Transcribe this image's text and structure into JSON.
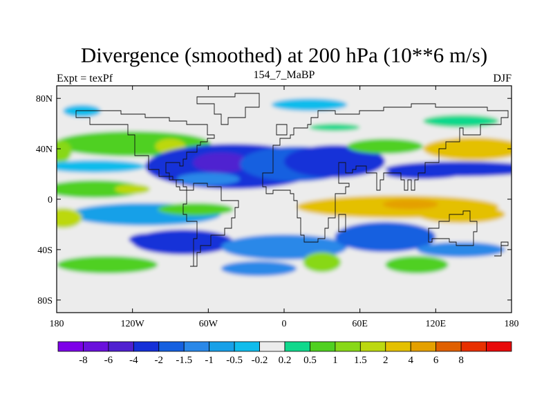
{
  "chart_data": {
    "type": "heatmap",
    "title": "Divergence (smoothed) at 200 hPa (10**6 m/s)",
    "left_subtitle": "Expt = texPf",
    "center_subtitle": "154_7_MaBP",
    "right_subtitle": "DJF",
    "xlim": [
      -180,
      180
    ],
    "ylim": [
      -90,
      90
    ],
    "x_ticks": [
      {
        "value": -180,
        "label": "180"
      },
      {
        "value": -120,
        "label": "120W"
      },
      {
        "value": -60,
        "label": "60W"
      },
      {
        "value": 0,
        "label": "0"
      },
      {
        "value": 60,
        "label": "60E"
      },
      {
        "value": 120,
        "label": "120E"
      },
      {
        "value": 180,
        "label": "180"
      }
    ],
    "y_ticks": [
      {
        "value": 80,
        "label": "80N"
      },
      {
        "value": 40,
        "label": "40N"
      },
      {
        "value": 0,
        "label": "0"
      },
      {
        "value": -40,
        "label": "40S"
      },
      {
        "value": -80,
        "label": "80S"
      }
    ],
    "colorbar": {
      "colors": [
        "#7d00e8",
        "#6a10dc",
        "#5020d0",
        "#1530d8",
        "#1560e0",
        "#2a88e8",
        "#18a0e8",
        "#10bcec",
        "#ececec",
        "#10d88c",
        "#50d020",
        "#88d818",
        "#bcd810",
        "#e4c000",
        "#e4a000",
        "#e06000",
        "#e83000",
        "#e80a0a"
      ],
      "labels": [
        "-8",
        "-6",
        "-4",
        "-2",
        "-1.5",
        "-1",
        "-0.5",
        "-0.2",
        "0.2",
        "0.5",
        "1",
        "1.5",
        "2",
        "4",
        "6",
        "8"
      ]
    },
    "field_features": [
      {
        "lon": -10,
        "lat": 0,
        "value": 0,
        "rx": 400,
        "ry": 95
      },
      {
        "lon": -120,
        "lat": 44,
        "value": 0.6,
        "rx": 62,
        "ry": 10
      },
      {
        "lon": -90,
        "lat": 42,
        "value": 1.6,
        "rx": 12,
        "ry": 6
      },
      {
        "lon": -178,
        "lat": 38,
        "value": 1.2,
        "rx": 10,
        "ry": 9
      },
      {
        "lon": -150,
        "lat": 26,
        "value": -0.35,
        "rx": 40,
        "ry": 5
      },
      {
        "lon": -40,
        "lat": 26,
        "value": -2.5,
        "rx": 70,
        "ry": 18
      },
      {
        "lon": -50,
        "lat": 29,
        "value": -5,
        "rx": 22,
        "ry": 8
      },
      {
        "lon": 10,
        "lat": 28,
        "value": -1.7,
        "rx": 45,
        "ry": 14
      },
      {
        "lon": 40,
        "lat": 30,
        "value": -3,
        "rx": 40,
        "ry": 13
      },
      {
        "lon": 140,
        "lat": 24,
        "value": -2.5,
        "rx": 60,
        "ry": 6
      },
      {
        "lon": 110,
        "lat": 20,
        "value": -2.5,
        "rx": 30,
        "ry": 4
      },
      {
        "lon": 150,
        "lat": 40,
        "value": 2.5,
        "rx": 40,
        "ry": 9
      },
      {
        "lon": 80,
        "lat": 42,
        "value": 0.7,
        "rx": 30,
        "ry": 6
      },
      {
        "lon": 40,
        "lat": 57,
        "value": 0.3,
        "rx": 20,
        "ry": 3
      },
      {
        "lon": -150,
        "lat": 8,
        "value": 0.8,
        "rx": 40,
        "ry": 7
      },
      {
        "lon": -120,
        "lat": 8,
        "value": 1.8,
        "rx": 14,
        "ry": 4
      },
      {
        "lon": -60,
        "lat": 16,
        "value": -1.2,
        "rx": 25,
        "ry": 5
      },
      {
        "lon": -110,
        "lat": -12,
        "value": -0.8,
        "rx": 60,
        "ry": 9
      },
      {
        "lon": -70,
        "lat": -8,
        "value": 0.6,
        "rx": 30,
        "ry": 5
      },
      {
        "lon": -175,
        "lat": -15,
        "value": 1.6,
        "rx": 15,
        "ry": 8
      },
      {
        "lon": 90,
        "lat": -6,
        "value": 2.8,
        "rx": 80,
        "ry": 9
      },
      {
        "lon": 100,
        "lat": -4,
        "value": 5,
        "rx": 22,
        "ry": 4
      },
      {
        "lon": 140,
        "lat": -12,
        "value": 2.5,
        "rx": 35,
        "ry": 7
      },
      {
        "lon": -80,
        "lat": -34,
        "value": -2.5,
        "rx": 40,
        "ry": 10
      },
      {
        "lon": -108,
        "lat": -32,
        "value": -4,
        "rx": 15,
        "ry": 5
      },
      {
        "lon": 0,
        "lat": -38,
        "value": -1.5,
        "rx": 50,
        "ry": 10
      },
      {
        "lon": 80,
        "lat": -30,
        "value": -1.7,
        "rx": 40,
        "ry": 12
      },
      {
        "lon": -140,
        "lat": -52,
        "value": 0.6,
        "rx": 40,
        "ry": 7
      },
      {
        "lon": 30,
        "lat": -50,
        "value": 1.2,
        "rx": 15,
        "ry": 8
      },
      {
        "lon": 105,
        "lat": -52,
        "value": 0.6,
        "rx": 25,
        "ry": 7
      },
      {
        "lon": -20,
        "lat": -55,
        "value": -1.5,
        "rx": 30,
        "ry": 6
      },
      {
        "lon": 140,
        "lat": -40,
        "value": -1.2,
        "rx": 35,
        "ry": 6
      },
      {
        "lon": 20,
        "lat": 75,
        "value": -0.4,
        "rx": 30,
        "ry": 5
      },
      {
        "lon": 140,
        "lat": 62,
        "value": 0.3,
        "rx": 30,
        "ry": 5
      },
      {
        "lon": -160,
        "lat": 70,
        "value": -0.4,
        "rx": 15,
        "ry": 5
      }
    ],
    "coastlines": [
      [
        [
          -130,
          60
        ],
        [
          -125,
          50
        ],
        [
          -118,
          34
        ],
        [
          -108,
          24
        ],
        [
          -98,
          18
        ],
        [
          -88,
          15
        ],
        [
          -80,
          9
        ],
        [
          -78,
          8
        ],
        [
          -82,
          10
        ],
        [
          -86,
          16
        ],
        [
          -90,
          21
        ],
        [
          -94,
          29
        ],
        [
          -88,
          30
        ],
        [
          -82,
          25
        ],
        [
          -80,
          32
        ],
        [
          -76,
          38
        ],
        [
          -70,
          42
        ],
        [
          -66,
          45
        ],
        [
          -60,
          47
        ],
        [
          -56,
          52
        ],
        [
          -62,
          58
        ],
        [
          -78,
          62
        ],
        [
          -90,
          64
        ],
        [
          -110,
          68
        ],
        [
          -130,
          70
        ],
        [
          -160,
          71
        ],
        [
          -165,
          65
        ],
        [
          -155,
          58
        ],
        [
          -140,
          60
        ],
        [
          -130,
          60
        ]
      ],
      [
        [
          -78,
          8
        ],
        [
          -72,
          12
        ],
        [
          -60,
          10
        ],
        [
          -50,
          0
        ],
        [
          -35,
          -6
        ],
        [
          -38,
          -14
        ],
        [
          -42,
          -23
        ],
        [
          -48,
          -28
        ],
        [
          -58,
          -38
        ],
        [
          -65,
          -42
        ],
        [
          -68,
          -52
        ],
        [
          -74,
          -52
        ],
        [
          -73,
          -40
        ],
        [
          -71,
          -30
        ],
        [
          -70,
          -18
        ],
        [
          -76,
          -12
        ],
        [
          -81,
          -4
        ],
        [
          -78,
          2
        ],
        [
          -78,
          8
        ]
      ],
      [
        [
          -44,
          60
        ],
        [
          -50,
          68
        ],
        [
          -56,
          76
        ],
        [
          -70,
          80
        ],
        [
          -40,
          83
        ],
        [
          -20,
          82
        ],
        [
          -20,
          72
        ],
        [
          -32,
          65
        ],
        [
          -44,
          60
        ]
      ],
      [
        [
          -10,
          36
        ],
        [
          -10,
          44
        ],
        [
          -2,
          48
        ],
        [
          4,
          52
        ],
        [
          8,
          57
        ],
        [
          12,
          56
        ],
        [
          18,
          60
        ],
        [
          20,
          66
        ],
        [
          28,
          71
        ],
        [
          40,
          68
        ],
        [
          60,
          70
        ],
        [
          80,
          73
        ],
        [
          100,
          77
        ],
        [
          120,
          73
        ],
        [
          140,
          72
        ],
        [
          160,
          70
        ],
        [
          178,
          66
        ],
        [
          172,
          60
        ],
        [
          162,
          58
        ],
        [
          156,
          51
        ],
        [
          143,
          56
        ],
        [
          140,
          46
        ],
        [
          128,
          40
        ],
        [
          122,
          38
        ],
        [
          122,
          30
        ],
        [
          112,
          21
        ],
        [
          106,
          14
        ],
        [
          103,
          8
        ],
        [
          100,
          14
        ],
        [
          98,
          8
        ],
        [
          96,
          16
        ],
        [
          92,
          22
        ],
        [
          87,
          21
        ],
        [
          80,
          15
        ],
        [
          77,
          8
        ],
        [
          72,
          20
        ],
        [
          66,
          25
        ],
        [
          58,
          24
        ],
        [
          55,
          22
        ],
        [
          50,
          28
        ],
        [
          48,
          30
        ],
        [
          44,
          16
        ],
        [
          42,
          12
        ],
        [
          51,
          11
        ],
        [
          48,
          4
        ],
        [
          40,
          -4
        ],
        [
          40,
          -15
        ],
        [
          35,
          -22
        ],
        [
          32,
          -30
        ],
        [
          26,
          -34
        ],
        [
          20,
          -34
        ],
        [
          16,
          -28
        ],
        [
          12,
          -15
        ],
        [
          10,
          -2
        ],
        [
          9,
          4
        ],
        [
          4,
          6
        ],
        [
          -8,
          4
        ],
        [
          -14,
          10
        ],
        [
          -17,
          15
        ],
        [
          -16,
          22
        ],
        [
          -10,
          30
        ],
        [
          -10,
          36
        ]
      ],
      [
        [
          114,
          -22
        ],
        [
          122,
          -18
        ],
        [
          130,
          -12
        ],
        [
          137,
          -12
        ],
        [
          142,
          -10
        ],
        [
          146,
          -18
        ],
        [
          153,
          -25
        ],
        [
          150,
          -37
        ],
        [
          144,
          -38
        ],
        [
          136,
          -35
        ],
        [
          130,
          -32
        ],
        [
          118,
          -35
        ],
        [
          114,
          -26
        ],
        [
          114,
          -22
        ]
      ],
      [
        [
          166,
          -46
        ],
        [
          172,
          -34
        ],
        [
          178,
          -38
        ],
        [
          172,
          -46
        ],
        [
          166,
          -46
        ]
      ],
      [
        [
          44,
          -25
        ],
        [
          50,
          -15
        ],
        [
          48,
          -12
        ],
        [
          44,
          -16
        ],
        [
          44,
          -25
        ]
      ],
      [
        [
          -6,
          50
        ],
        [
          0,
          51
        ],
        [
          2,
          58
        ],
        [
          -4,
          58
        ],
        [
          -6,
          50
        ]
      ]
    ]
  }
}
